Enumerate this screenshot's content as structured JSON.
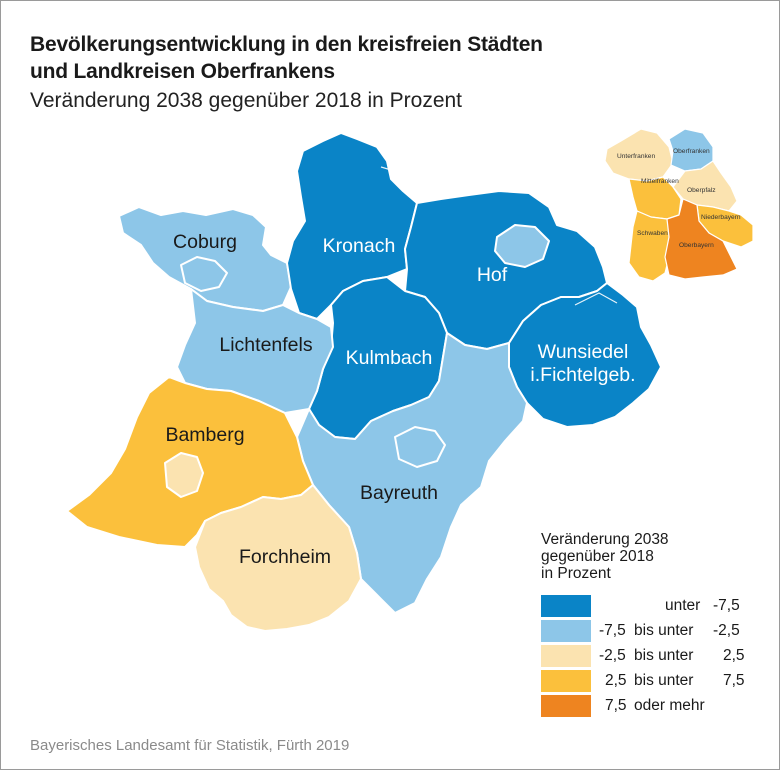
{
  "title_line1": "Bevölkerungsentwicklung in den kreisfreien Städten",
  "title_line2": "und Landkreisen Oberfrankens",
  "subtitle": "Veränderung 2038 gegenüber 2018 in Prozent",
  "regions": {
    "kronach": {
      "label": "Kronach",
      "class": "unter -7,5"
    },
    "hof": {
      "label": "Hof",
      "class": "unter -7,5"
    },
    "kulmbach": {
      "label": "Kulmbach",
      "class": "unter -7,5"
    },
    "wunsiedel": {
      "label_line1": "Wunsiedel",
      "label_line2": "i.Fichtelgeb.",
      "class": "unter -7,5"
    },
    "coburg": {
      "label": "Coburg",
      "class": "-7,5 bis unter -2,5"
    },
    "lichtenfels": {
      "label": "Lichtenfels",
      "class": "-7,5 bis unter -2,5"
    },
    "bayreuth": {
      "label": "Bayreuth",
      "class": "-7,5 bis unter -2,5"
    },
    "bamberg": {
      "label": "Bamberg",
      "class": "2,5 bis unter 7,5"
    },
    "forchheim": {
      "label": "Forchheim",
      "class": "-2,5 bis unter 2,5"
    }
  },
  "inset": {
    "unterfranken": "Unterfranken",
    "oberfranken": "Oberfranken",
    "mittelfranken": "Mittelfranken",
    "oberpfalz": "Oberpfalz",
    "niederbayern": "Niederbayern",
    "schwaben": "Schwaben",
    "oberbayern": "Oberbayern"
  },
  "legend": {
    "title_line1": "Veränderung 2038",
    "title_line2": "gegenüber 2018",
    "title_line3": "in Prozent",
    "items": [
      {
        "a": "",
        "b": "unter",
        "c": "-7,5",
        "color": "#0a84c7"
      },
      {
        "a": "-7,5",
        "b": "bis unter",
        "c": "-2,5",
        "color": "#8dc6e8"
      },
      {
        "a": "-2,5",
        "b": "bis unter",
        "c": "2,5",
        "color": "#fbe3b0"
      },
      {
        "a": "2,5",
        "b": "bis unter",
        "c": "7,5",
        "color": "#fbc03c"
      },
      {
        "a": "7,5",
        "b": "oder mehr",
        "c": "",
        "color": "#ee8420"
      }
    ]
  },
  "colors": {
    "dark_blue": "#0a84c7",
    "light_blue": "#8dc6e8",
    "light_beige": "#fbe3b0",
    "yellow": "#fbc03c",
    "orange": "#ee8420"
  },
  "source": "Bayerisches Landesamt für Statistik, Fürth 2019"
}
